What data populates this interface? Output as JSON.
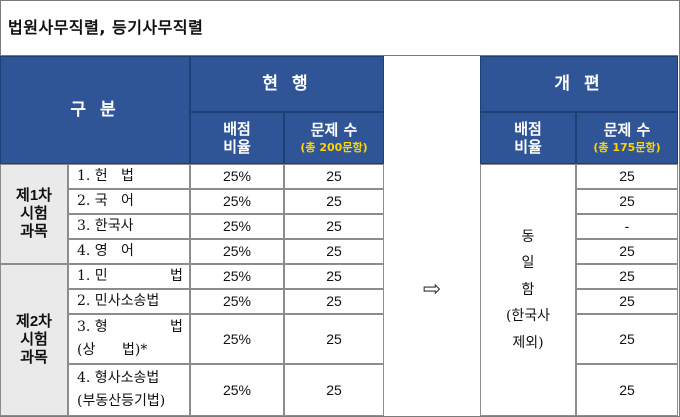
{
  "title": "법원사무직렬, 등기사무직렬",
  "header": {
    "category": "구 분",
    "current": "현 행",
    "reform": "개 편",
    "ratio_line1": "배점",
    "ratio_line2": "비율",
    "count": "문제 수",
    "current_total": "(총 200문항)",
    "reform_total": "(총 175문항)"
  },
  "groups": [
    {
      "line1": "제1차",
      "line2": "시험",
      "line3": "과목"
    },
    {
      "line1": "제2차",
      "line2": "시험",
      "line3": "과목"
    }
  ],
  "rows": [
    {
      "subject": "1. 헌   법",
      "ratio": "25%",
      "count": "25",
      "reform_count": "25"
    },
    {
      "subject": "2. 국   어",
      "ratio": "25%",
      "count": "25",
      "reform_count": "25"
    },
    {
      "subject": "3. 한국사",
      "ratio": "25%",
      "count": "25",
      "reform_count": "-"
    },
    {
      "subject": "4. 영   어",
      "ratio": "25%",
      "count": "25",
      "reform_count": "25"
    },
    {
      "subject": "1. 민              법",
      "ratio": "25%",
      "count": "25",
      "reform_count": "25"
    },
    {
      "subject": "2. 민사소송법",
      "ratio": "25%",
      "count": "25",
      "reform_count": "25"
    },
    {
      "subject": "3. 형              법",
      "subject_line2": "(상      법)*",
      "ratio": "25%",
      "count": "25",
      "reform_count": "25"
    },
    {
      "subject": "4. 형사소송법",
      "subject_line2": "(부동산등기법)",
      "ratio": "25%",
      "count": "25",
      "reform_count": "25"
    }
  ],
  "arrow_icon": "arrow-right-icon",
  "reform_ratio": {
    "line1": "동",
    "line2": "일",
    "line3": "함",
    "line4": "(한국사",
    "line5": "제외)"
  },
  "colors": {
    "header_bg": "#2f5597",
    "header_text": "#ffffff",
    "highlight": "#ffd400",
    "group_bg": "#eaeaea"
  }
}
